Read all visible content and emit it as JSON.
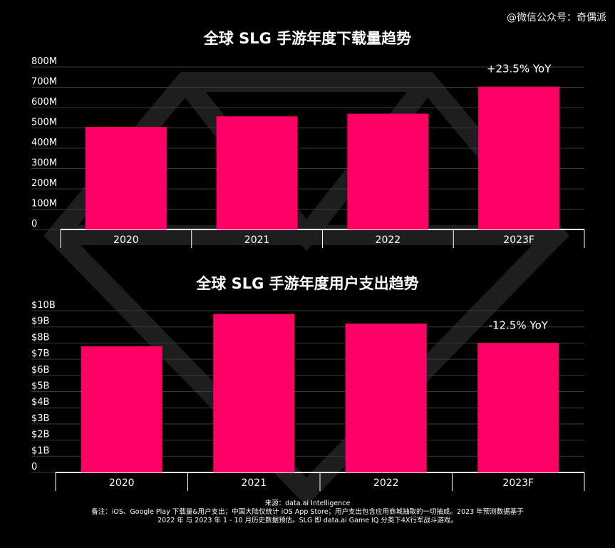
{
  "watermark": "@微信公众号：奇偶派",
  "colors": {
    "bar": "#ff0066",
    "background": "#000000",
    "grid": "#3a3a3a",
    "text": "#ffffff"
  },
  "chart_data": [
    {
      "type": "bar",
      "title": "全球 SLG 手游年度下载量趋势",
      "categories": [
        "2020",
        "2021",
        "2022",
        "2023F"
      ],
      "values": [
        505000000,
        557000000,
        570000000,
        703000000
      ],
      "ylim": [
        0,
        800000000
      ],
      "yticks": [
        "0",
        "100M",
        "200M",
        "300M",
        "400M",
        "500M",
        "600M",
        "700M",
        "800M"
      ],
      "annotation": "+23.5% YoY",
      "grid": true
    },
    {
      "type": "bar",
      "title": "全球 SLG 手游年度用户支出趋势",
      "categories": [
        "2020",
        "2021",
        "2022",
        "2023F"
      ],
      "values": [
        7.8,
        9.8,
        9.2,
        8.0
      ],
      "ylim": [
        0,
        10
      ],
      "yticks": [
        "0",
        "$1B",
        "$2B",
        "$3B",
        "$4B",
        "$5B",
        "$6B",
        "$7B",
        "$8B",
        "$9B",
        "$10B"
      ],
      "annotation": "-12.5% YoY",
      "grid": true
    }
  ],
  "footer": {
    "source": "来源：data.ai Intelligence",
    "note_line1": "备注：iOS、Google Play 下载量&用户支出；中国大陆仅统计 iOS App Store；用户支出包含应用商城抽取的一切抽成。2023 年预测数据基于",
    "note_line2": "2022 年 与 2023 年 1 - 10 月历史数据预估。SLG 即 data.ai Game IQ 分类下4X行军战斗游戏。"
  }
}
